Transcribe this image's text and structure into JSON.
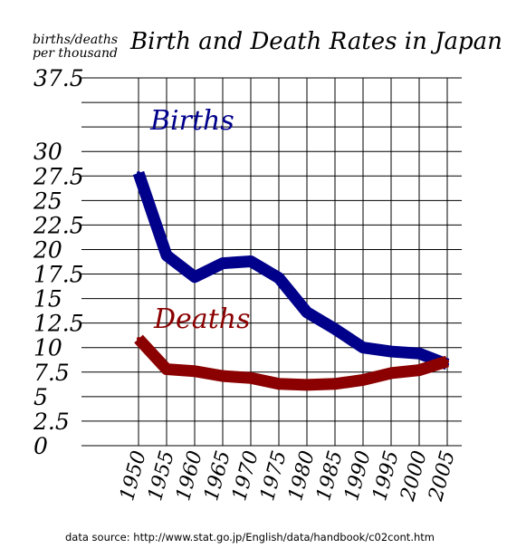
{
  "chart_data": {
    "type": "line",
    "title": "Birth and Death Rates in Japan",
    "ylabel_line1": "births/deaths",
    "ylabel_line2": "per thousand",
    "x": [
      1950,
      1955,
      1960,
      1965,
      1970,
      1975,
      1980,
      1985,
      1990,
      1995,
      2000,
      2005
    ],
    "x_tick_labels": [
      "1950",
      "1955",
      "1960",
      "1965",
      "1970",
      "1975",
      "1980",
      "1985",
      "1990",
      "1995",
      "2000",
      "2005"
    ],
    "ylim": [
      0,
      37.5
    ],
    "y_ticks": [
      0,
      2.5,
      5,
      7.5,
      10,
      12.5,
      15,
      17.5,
      20,
      22.5,
      25,
      27.5,
      30,
      37.5
    ],
    "y_tick_labels": [
      "0",
      "2.5",
      "5",
      "7.5",
      "10",
      "12.5",
      "15",
      "17.5",
      "20",
      "22.5",
      "25",
      "27.5",
      "30",
      "37.5"
    ],
    "grid": true,
    "series": [
      {
        "name": "Births",
        "color": "#00008b",
        "values": [
          27.8,
          19.4,
          17.2,
          18.6,
          18.8,
          17.1,
          13.6,
          11.9,
          10.0,
          9.6,
          9.4,
          8.3
        ]
      },
      {
        "name": "Deaths",
        "color": "#8b0000",
        "values": [
          10.9,
          7.8,
          7.6,
          7.1,
          6.9,
          6.3,
          6.2,
          6.3,
          6.7,
          7.4,
          7.7,
          8.6
        ]
      }
    ],
    "source": "data source: http://www.stat.go.jp/English/data/handbook/c02cont.htm"
  }
}
